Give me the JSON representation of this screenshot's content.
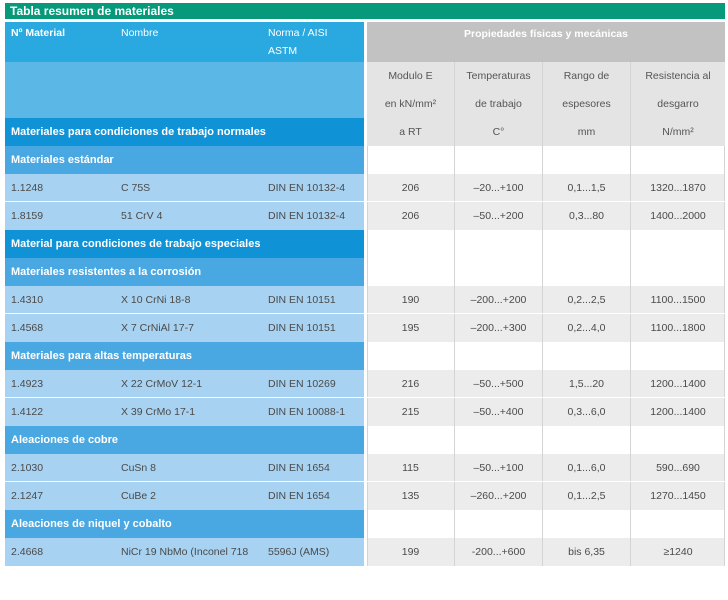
{
  "title": "Tabla resumen de materiales",
  "header": {
    "col_material": "Nº Material",
    "col_nombre": "Nombre",
    "col_norma_1": "Norma / AISI",
    "col_norma_2": "ASTM",
    "props": "Propiedades físicas y mecánicas",
    "modulo": [
      "Modulo E",
      "en kN/mm²",
      "a RT"
    ],
    "temperaturas": [
      "Temperaturas",
      "de trabajo",
      "C°"
    ],
    "rango": [
      "Rango de",
      "espesores",
      "mm"
    ],
    "resistencia": [
      "Resistencia al",
      "desgarro",
      "N/mm²"
    ]
  },
  "sections": {
    "normales": "Materiales para condiciones de trabajo normales",
    "estandar": "Materiales estándar",
    "especiales": "Material para condiciones de trabajo especiales",
    "corrosion": "Materiales resistentes a la corrosión",
    "altas": "Materiales para altas temperaturas",
    "cobre": "Aleaciones de cobre",
    "niquel": "Aleaciones de niquel y cobalto"
  },
  "rows": [
    {
      "material": "1.1248",
      "nombre": "C 75S",
      "norma": "DIN EN 10132-4",
      "modulo": "206",
      "temp": "–20...+100",
      "rango": "0,1...1,5",
      "resist": "1320...1870"
    },
    {
      "material": "1.8159",
      "nombre": "51 CrV 4",
      "norma": "DIN EN 10132-4",
      "modulo": "206",
      "temp": "–50...+200",
      "rango": "0,3...80",
      "resist": "1400...2000"
    },
    {
      "material": "1.4310",
      "nombre": "X 10 CrNi 18-8",
      "norma": "DIN EN 10151",
      "modulo": "190",
      "temp": "–200...+200",
      "rango": "0,2...2,5",
      "resist": "1100...1500"
    },
    {
      "material": "1.4568",
      "nombre": "X 7 CrNiAl 17-7",
      "norma": "DIN EN 10151",
      "modulo": "195",
      "temp": "–200...+300",
      "rango": "0,2...4,0",
      "resist": "1100...1800"
    },
    {
      "material": "1.4923",
      "nombre": "X 22 CrMoV 12-1",
      "norma": "DIN EN 10269",
      "modulo": "216",
      "temp": "–50...+500",
      "rango": "1,5...20",
      "resist": "1200...1400"
    },
    {
      "material": "1.4122",
      "nombre": "X 39 CrMo 17-1",
      "norma": "DIN EN 10088-1",
      "modulo": "215",
      "temp": "–50...+400",
      "rango": "0,3...6,0",
      "resist": "1200...1400"
    },
    {
      "material": "2.1030",
      "nombre": "CuSn 8",
      "norma": "DIN EN 1654",
      "modulo": "115",
      "temp": "–50...+100",
      "rango": "0,1...6,0",
      "resist": "590...690"
    },
    {
      "material": "2.1247",
      "nombre": "CuBe 2",
      "norma": "DIN EN 1654",
      "modulo": "135",
      "temp": "–260...+200",
      "rango": "0,1...2,5",
      "resist": "1270...1450"
    },
    {
      "material": "2.4668",
      "nombre": "NiCr 19 NbMo (Inconel 718",
      "norma": "5596J (AMS)",
      "modulo": "199",
      "temp": "-200...+600",
      "rango": "bis 6,35",
      "resist": "≥1240"
    }
  ]
}
